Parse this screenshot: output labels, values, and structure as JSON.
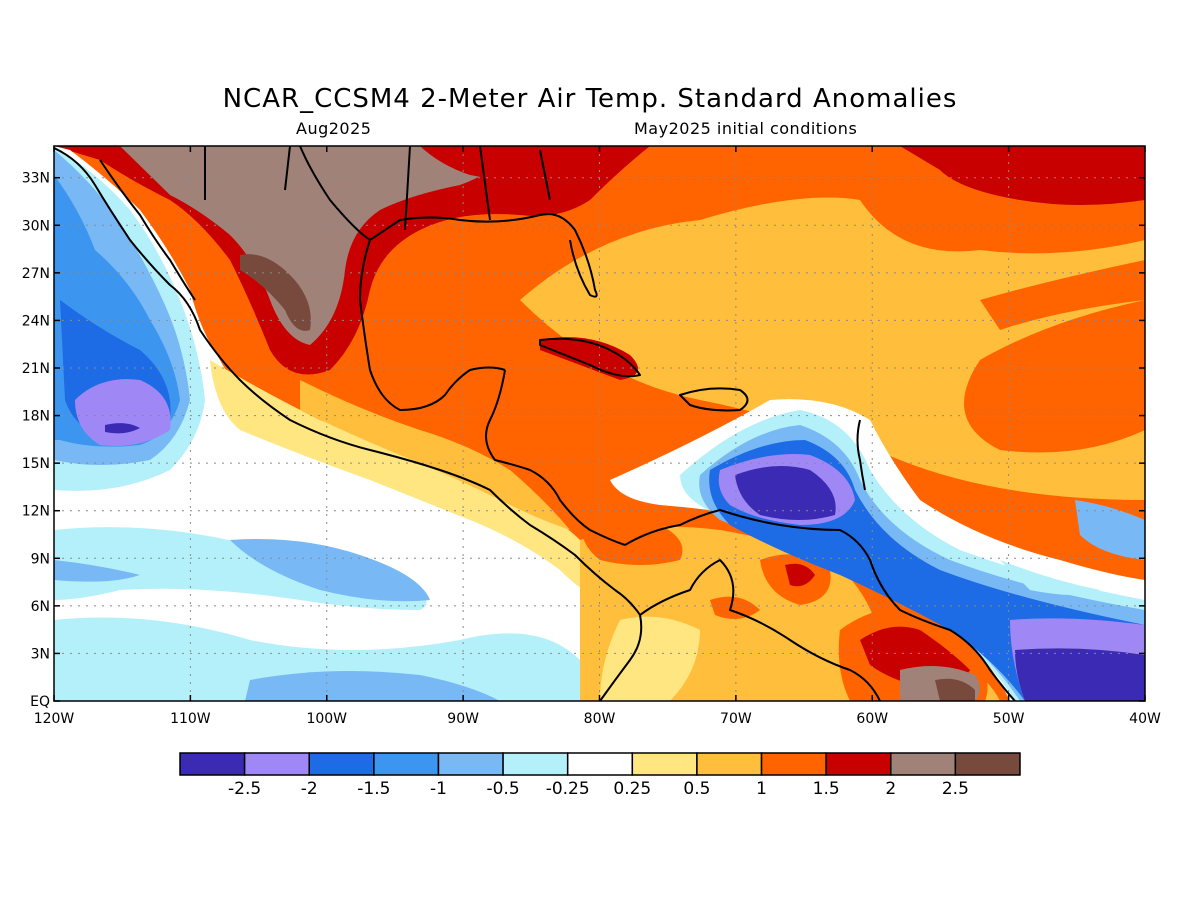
{
  "title": "NCAR_CCSM4 2-Meter Air Temp. Standard Anomalies",
  "valid_month": "Aug2025",
  "init_conditions": "May2025 initial conditions",
  "map": {
    "lon_range": [
      -120,
      -40
    ],
    "lat_range": [
      0,
      35
    ],
    "lat_ticks": [
      {
        "value": 33,
        "label": "33N"
      },
      {
        "value": 30,
        "label": "30N"
      },
      {
        "value": 27,
        "label": "27N"
      },
      {
        "value": 24,
        "label": "24N"
      },
      {
        "value": 21,
        "label": "21N"
      },
      {
        "value": 18,
        "label": "18N"
      },
      {
        "value": 15,
        "label": "15N"
      },
      {
        "value": 12,
        "label": "12N"
      },
      {
        "value": 9,
        "label": "9N"
      },
      {
        "value": 6,
        "label": "6N"
      },
      {
        "value": 3,
        "label": "3N"
      },
      {
        "value": 0,
        "label": "EQ"
      }
    ],
    "lon_ticks": [
      {
        "value": -120,
        "label": "120W"
      },
      {
        "value": -110,
        "label": "110W"
      },
      {
        "value": -100,
        "label": "100W"
      },
      {
        "value": -90,
        "label": "90W"
      },
      {
        "value": -80,
        "label": "80W"
      },
      {
        "value": -70,
        "label": "70W"
      },
      {
        "value": -60,
        "label": "60W"
      },
      {
        "value": -50,
        "label": "50W"
      },
      {
        "value": -40,
        "label": "40W"
      }
    ]
  },
  "colorbar": {
    "colors": [
      "#3b2bb4",
      "#9f88f5",
      "#1e6be6",
      "#3c96f0",
      "#78b9f5",
      "#b4f0fa",
      "#ffffff",
      "#ffe680",
      "#ffbe3c",
      "#ff6400",
      "#c80000",
      "#a08278",
      "#784a3e"
    ],
    "labels": [
      "-2.5",
      "-2",
      "-1.5",
      "-1",
      "-0.5",
      "-0.25",
      "0.25",
      "0.5",
      "1",
      "1.5",
      "2",
      "2.5"
    ]
  }
}
